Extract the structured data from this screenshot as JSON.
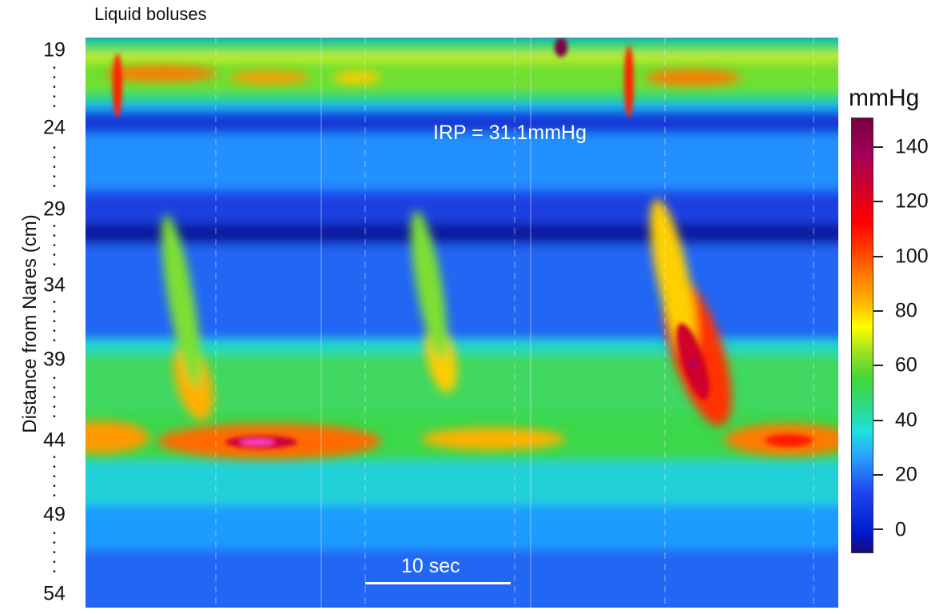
{
  "chart_data": {
    "type": "heatmap",
    "title": "Liquid boluses",
    "ylabel": "Distance from Nares (cm)",
    "y_ticks": [
      "19",
      "24",
      "29",
      "34",
      "39",
      "44",
      "49",
      "54"
    ],
    "ylim": [
      19,
      54
    ],
    "colorbar": {
      "title": "mmHg",
      "ticks": [
        "140",
        "120",
        "100",
        "80",
        "60",
        "40",
        "20",
        "0"
      ],
      "range": [
        -10,
        150
      ]
    },
    "annotations": {
      "irp": "IRP = 31.1mmHg",
      "scale_bar": "10 sec"
    },
    "grid": false
  }
}
